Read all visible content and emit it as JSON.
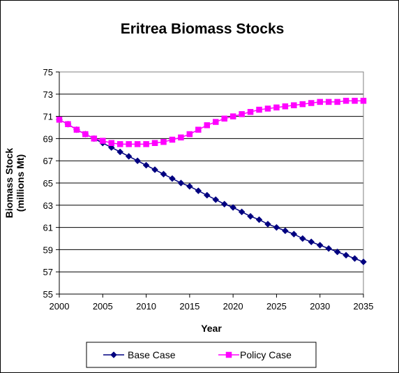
{
  "chart_data": {
    "type": "line",
    "title": "Eritrea Biomass Stocks",
    "xlabel": "Year",
    "ylabel": [
      "Biomass Stock",
      "(millions Mt)"
    ],
    "xlim": [
      2000,
      2035
    ],
    "ylim": [
      55,
      75
    ],
    "x_ticks": [
      "2000",
      "2005",
      "2010",
      "2015",
      "2020",
      "2025",
      "2030",
      "2035"
    ],
    "y_ticks": [
      "55",
      "57",
      "59",
      "61",
      "63",
      "65",
      "67",
      "69",
      "71",
      "73",
      "75"
    ],
    "grid": "horizontal",
    "legend_position": "bottom",
    "x": [
      2000,
      2001,
      2002,
      2003,
      2004,
      2005,
      2006,
      2007,
      2008,
      2009,
      2010,
      2011,
      2012,
      2013,
      2014,
      2015,
      2016,
      2017,
      2018,
      2019,
      2020,
      2021,
      2022,
      2023,
      2024,
      2025,
      2026,
      2027,
      2028,
      2029,
      2030,
      2031,
      2032,
      2033,
      2034,
      2035
    ],
    "series": [
      {
        "name": "Base Case",
        "color": "#000080",
        "marker": "diamond",
        "values": [
          70.7,
          70.3,
          69.8,
          69.4,
          69.0,
          68.6,
          68.2,
          67.8,
          67.4,
          67.0,
          66.6,
          66.2,
          65.8,
          65.4,
          65.0,
          64.7,
          64.3,
          63.9,
          63.5,
          63.1,
          62.8,
          62.4,
          62.0,
          61.7,
          61.3,
          61.0,
          60.7,
          60.4,
          60.0,
          59.7,
          59.4,
          59.1,
          58.8,
          58.5,
          58.2,
          57.9
        ]
      },
      {
        "name": "Policy Case",
        "color": "#FF00FF",
        "marker": "square",
        "values": [
          70.7,
          70.3,
          69.8,
          69.4,
          69.0,
          68.8,
          68.6,
          68.5,
          68.5,
          68.5,
          68.5,
          68.6,
          68.7,
          68.9,
          69.1,
          69.4,
          69.8,
          70.2,
          70.5,
          70.8,
          71.0,
          71.2,
          71.4,
          71.6,
          71.7,
          71.8,
          71.9,
          72.0,
          72.1,
          72.2,
          72.3,
          72.3,
          72.3,
          72.4,
          72.4,
          72.4
        ]
      }
    ]
  }
}
